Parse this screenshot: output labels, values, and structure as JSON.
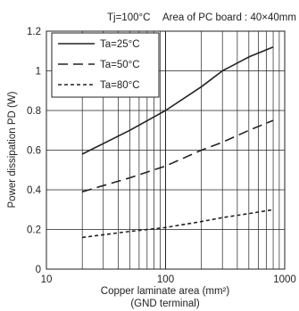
{
  "chart_data": {
    "type": "line",
    "header_left": "Tj=100°C",
    "header_right": "Area of PC board : 40×40mm",
    "xlabel_line1": "Copper laminate area (mm²)",
    "xlabel_line2": "(GND terminal)",
    "ylabel": "Power dissipation PD (W)",
    "x_scale": "log",
    "xlim": [
      10,
      1000
    ],
    "ylim": [
      0,
      1.2
    ],
    "x_ticks": [
      {
        "value": 10,
        "label": "10"
      },
      {
        "value": 100,
        "label": "100"
      },
      {
        "value": 1000,
        "label": "1000"
      }
    ],
    "y_ticks": [
      {
        "value": 0,
        "label": "0"
      },
      {
        "value": 0.2,
        "label": "0.2"
      },
      {
        "value": 0.4,
        "label": "0.4"
      },
      {
        "value": 0.6,
        "label": "0.6"
      },
      {
        "value": 0.8,
        "label": "0.8"
      },
      {
        "value": 1.0,
        "label": "1"
      },
      {
        "value": 1.2,
        "label": "1.2"
      }
    ],
    "grid": true,
    "legend_position": "top-left",
    "series": [
      {
        "name": "Ta=25°C",
        "style": "solid",
        "x": [
          20,
          50,
          100,
          200,
          300,
          500,
          800
        ],
        "y": [
          0.58,
          0.7,
          0.8,
          0.92,
          1.0,
          1.07,
          1.12
        ]
      },
      {
        "name": "Ta=50°C",
        "style": "dashed",
        "x": [
          20,
          50,
          100,
          200,
          300,
          500,
          800
        ],
        "y": [
          0.39,
          0.46,
          0.52,
          0.6,
          0.64,
          0.7,
          0.75
        ]
      },
      {
        "name": "Ta=80°C",
        "style": "dotted",
        "x": [
          20,
          50,
          100,
          200,
          300,
          500,
          800
        ],
        "y": [
          0.16,
          0.19,
          0.21,
          0.24,
          0.26,
          0.28,
          0.3
        ]
      }
    ]
  }
}
